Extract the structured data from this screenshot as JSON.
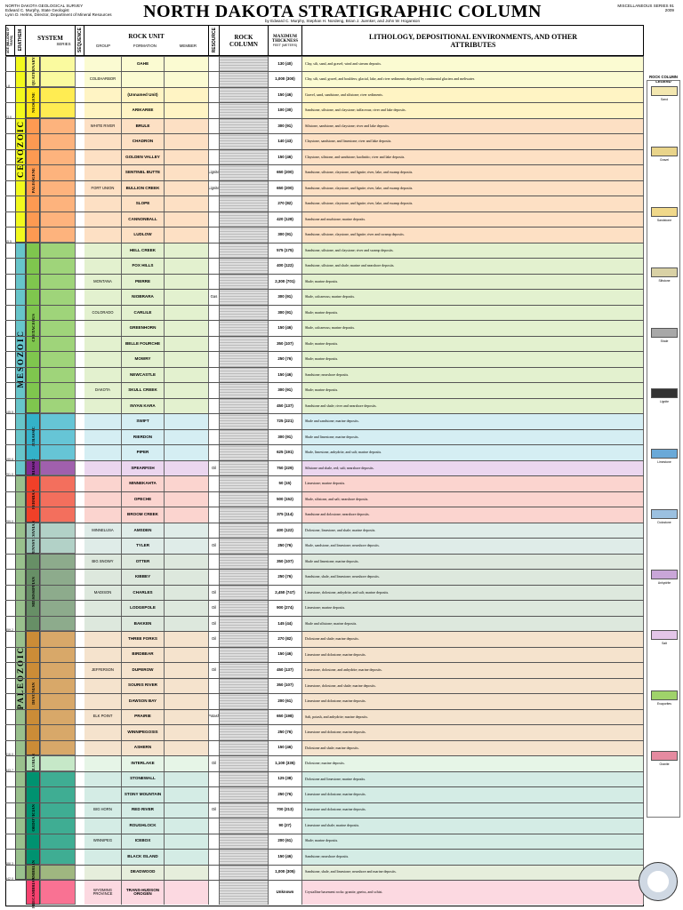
{
  "header": {
    "left_lines": [
      "NORTH DAKOTA GEOLOGICAL SURVEY",
      "Edward C. Murphy, State Geologist",
      "Lynn D. Helms, Director, Department of Mineral Resources"
    ],
    "title": "NORTH DAKOTA STRATIGRAPHIC COLUMN",
    "authors": "by Edward C. Murphy, Stephan H. Nordeng, Brian J. Juenker, and John W. Hoganson",
    "right_lines": [
      "MISCELLANEOUS SERIES 91",
      "2009"
    ]
  },
  "columns": {
    "age": "AGE (MILLIONS OF YEARS)",
    "erathem": "ERATHEM",
    "system": "SYSTEM",
    "series": "SERIES",
    "sequence": "SEQUENCE",
    "rock_unit": "ROCK UNIT",
    "group": "GROUP",
    "formation": "FORMATION",
    "member": "MEMBER",
    "resource": "RESOURCE",
    "rock_column": "ROCK COLUMN",
    "max_thickness": "MAXIMUM THICKNESS",
    "thickness_units": "FEET (METERS)",
    "lithology": "LITHOLOGY, DEPOSITIONAL ENVIRONMENTS, AND OTHER ATTRIBUTES"
  },
  "eras": [
    {
      "name": "CENOZOIC"
    },
    {
      "name": "MESOZOIC"
    },
    {
      "name": "PALEOZOIC"
    }
  ],
  "systems": [
    {
      "name": "QUATERNARY",
      "color": "#f9f97f"
    },
    {
      "name": "NEOGENE",
      "color": "#ffe619"
    },
    {
      "name": "PALEOGENE",
      "color": "#fd9a52"
    },
    {
      "name": "CRETACEOUS",
      "color": "#7fc64e"
    },
    {
      "name": "JURASSIC",
      "color": "#34b2c9"
    },
    {
      "name": "TRIASSIC",
      "color": "#812b92"
    },
    {
      "name": "PERMIAN",
      "color": "#f04028"
    },
    {
      "name": "PENNSYLVANIAN",
      "color": "#99c2b5"
    },
    {
      "name": "MISSISSIPPIAN",
      "color": "#678f66"
    },
    {
      "name": "DEVONIAN",
      "color": "#cb8c37"
    },
    {
      "name": "SILURIAN",
      "color": "#b3e1b6"
    },
    {
      "name": "ORDOVICIAN",
      "color": "#009270"
    },
    {
      "name": "CAMBRIAN",
      "color": "#7fa056"
    },
    {
      "name": "PRECAMBRIAN",
      "color": "#f74370"
    }
  ],
  "ages": [
    "1.8",
    "23.0",
    "65.5",
    "145.5",
    "199.6",
    "251.0",
    "299.0",
    "359.2",
    "416.0",
    "443.7",
    "488.3",
    "542.0"
  ],
  "units": [
    {
      "group": "",
      "formation": "OAHE",
      "resource": "",
      "thickness": "130 (40)",
      "desc": "Clay, silt, sand, and gravel; wind and stream deposits.",
      "color": "#fbfbd2"
    },
    {
      "group": "COLEHARBOR",
      "formation": "",
      "resource": "",
      "thickness": "1,000 (300)",
      "desc": "Clay, silt, sand, gravel, and boulders; glacial, lake, and river sediments deposited by continental glaciers and meltwater.",
      "color": "#fbfbd2"
    },
    {
      "group": "",
      "formation": "(Unnamed Unit)",
      "resource": "",
      "thickness": "150 (46)",
      "desc": "Gravel, sand, sandstone, and siltstone; river sediments.",
      "color": "#fff4c4"
    },
    {
      "group": "",
      "formation": "ARIKAREE",
      "resource": "",
      "thickness": "100 (30)",
      "desc": "Sandstone, siltstone, and claystone; tuffaceous; river and lake deposits.",
      "color": "#fff4c4"
    },
    {
      "group": "WHITE RIVER",
      "formation": "BRULE",
      "resource": "",
      "thickness": "300 (91)",
      "desc": "Siltstone, sandstone, and claystone; river and lake deposits.",
      "color": "#fde0c4"
    },
    {
      "group": "",
      "formation": "CHADRON",
      "resource": "",
      "thickness": "140 (43)",
      "desc": "Claystone, sandstone, and limestone; river and lake deposits.",
      "color": "#fde0c4"
    },
    {
      "group": "",
      "formation": "GOLDEN VALLEY",
      "resource": "",
      "thickness": "150 (46)",
      "desc": "Claystone, siltstone, and sandstone; kaolinitic; river and lake deposits.",
      "color": "#fde0c4"
    },
    {
      "group": "",
      "formation": "SENTINEL BUTTE",
      "resource": "Lignite",
      "thickness": "650 (200)",
      "desc": "Sandstone, siltstone, claystone, and lignite; river, lake, and swamp deposits.",
      "color": "#fde0c4"
    },
    {
      "group": "FORT UNION",
      "formation": "BULLION CREEK",
      "resource": "Lignite",
      "thickness": "650 (200)",
      "desc": "Sandstone, siltstone, claystone, and lignite; river, lake, and swamp deposits.",
      "color": "#fde0c4"
    },
    {
      "group": "",
      "formation": "SLOPE",
      "resource": "",
      "thickness": "270 (82)",
      "desc": "Sandstone, siltstone, claystone, and lignite; river, lake, and swamp deposits.",
      "color": "#fde0c4"
    },
    {
      "group": "",
      "formation": "CANNONBALL",
      "resource": "",
      "thickness": "420 (128)",
      "desc": "Sandstone and mudstone; marine deposits.",
      "color": "#fde0c4"
    },
    {
      "group": "",
      "formation": "LUDLOW",
      "resource": "",
      "thickness": "300 (91)",
      "desc": "Sandstone, siltstone, claystone, and lignite; river and swamp deposits.",
      "color": "#fde0c4"
    },
    {
      "group": "",
      "formation": "HELL CREEK",
      "resource": "",
      "thickness": "575 (175)",
      "desc": "Sandstone, siltstone, and claystone; river and swamp deposits.",
      "color": "#e3f1cf"
    },
    {
      "group": "",
      "formation": "FOX HILLS",
      "resource": "",
      "thickness": "400 (122)",
      "desc": "Sandstone, siltstone, and shale; marine and nearshore deposits.",
      "color": "#e3f1cf"
    },
    {
      "group": "MONTANA",
      "formation": "PIERRE",
      "resource": "",
      "thickness": "2,300 (701)",
      "desc": "Shale; marine deposits.",
      "color": "#e3f1cf"
    },
    {
      "group": "",
      "formation": "NIOBRARA",
      "resource": "Gas",
      "thickness": "300 (91)",
      "desc": "Shale, calcareous; marine deposits.",
      "color": "#e3f1cf"
    },
    {
      "group": "COLORADO",
      "formation": "CARLILE",
      "resource": "",
      "thickness": "300 (91)",
      "desc": "Shale; marine deposits.",
      "color": "#e3f1cf"
    },
    {
      "group": "",
      "formation": "GREENHORN",
      "resource": "",
      "thickness": "150 (46)",
      "desc": "Shale, calcareous; marine deposits.",
      "color": "#e3f1cf"
    },
    {
      "group": "",
      "formation": "BELLE FOURCHE",
      "resource": "",
      "thickness": "350 (107)",
      "desc": "Shale; marine deposits.",
      "color": "#e3f1cf"
    },
    {
      "group": "",
      "formation": "MOWRY",
      "resource": "",
      "thickness": "250 (76)",
      "desc": "Shale; marine deposits.",
      "color": "#e3f1cf"
    },
    {
      "group": "",
      "formation": "NEWCASTLE",
      "resource": "",
      "thickness": "150 (46)",
      "desc": "Sandstone; nearshore deposits.",
      "color": "#e3f1cf"
    },
    {
      "group": "DAKOTA",
      "formation": "SKULL CREEK",
      "resource": "",
      "thickness": "300 (91)",
      "desc": "Shale; marine deposits.",
      "color": "#e3f1cf"
    },
    {
      "group": "",
      "formation": "INYAN KARA",
      "resource": "",
      "thickness": "450 (137)",
      "desc": "Sandstone and shale; river and nearshore deposits.",
      "color": "#e3f1cf"
    },
    {
      "group": "",
      "formation": "SWIFT",
      "resource": "",
      "thickness": "725 (221)",
      "desc": "Shale and sandstone; marine deposits.",
      "color": "#d5eef3"
    },
    {
      "group": "",
      "formation": "RIERDON",
      "resource": "",
      "thickness": "300 (91)",
      "desc": "Shale and limestone; marine deposits.",
      "color": "#d5eef3"
    },
    {
      "group": "",
      "formation": "PIPER",
      "resource": "",
      "thickness": "625 (191)",
      "desc": "Shale, limestone, anhydrite, and salt; marine deposits.",
      "color": "#d5eef3"
    },
    {
      "group": "",
      "formation": "SPEARFISH",
      "resource": "Oil",
      "thickness": "750 (229)",
      "desc": "Siltstone and shale, red; salt; nearshore deposits.",
      "color": "#ebd6ef"
    },
    {
      "group": "",
      "formation": "MINNEKAHTA",
      "resource": "",
      "thickness": "50 (15)",
      "desc": "Limestone; marine deposits.",
      "color": "#fbd4cf"
    },
    {
      "group": "",
      "formation": "OPECHE",
      "resource": "",
      "thickness": "500 (152)",
      "desc": "Shale, siltstone, and salt; nearshore deposits.",
      "color": "#fbd4cf"
    },
    {
      "group": "",
      "formation": "BROOM CREEK",
      "resource": "",
      "thickness": "375 (114)",
      "desc": "Sandstone and dolostone; nearshore deposits.",
      "color": "#fbd4cf"
    },
    {
      "group": "MINNELUSA",
      "formation": "AMSDEN",
      "resource": "",
      "thickness": "400 (122)",
      "desc": "Dolostone, limestone, and shale; marine deposits.",
      "color": "#dfece8"
    },
    {
      "group": "",
      "formation": "TYLER",
      "resource": "Oil",
      "thickness": "250 (76)",
      "desc": "Shale, sandstone, and limestone; nearshore deposits.",
      "color": "#dfece8"
    },
    {
      "group": "BIG SNOWY",
      "formation": "OTTER",
      "resource": "",
      "thickness": "350 (107)",
      "desc": "Shale and limestone; marine deposits.",
      "color": "#dde8dd"
    },
    {
      "group": "",
      "formation": "KIBBEY",
      "resource": "",
      "thickness": "250 (76)",
      "desc": "Sandstone, shale, and limestone; nearshore deposits.",
      "color": "#dde8dd"
    },
    {
      "group": "MADISON",
      "formation": "CHARLES",
      "resource": "Oil",
      "thickness": "2,450 (747)",
      "desc": "Limestone, dolostone, anhydrite, and salt; marine deposits.",
      "color": "#dde8dd"
    },
    {
      "group": "",
      "formation": "LODGEPOLE",
      "resource": "Oil",
      "thickness": "900 (274)",
      "desc": "Limestone; marine deposits.",
      "color": "#dde8dd"
    },
    {
      "group": "",
      "formation": "BAKKEN",
      "resource": "Oil",
      "thickness": "145 (44)",
      "desc": "Shale and siltstone; marine deposits.",
      "color": "#dde8dd"
    },
    {
      "group": "",
      "formation": "THREE FORKS",
      "resource": "Oil",
      "thickness": "270 (82)",
      "desc": "Dolostone and shale; marine deposits.",
      "color": "#f5e3cd"
    },
    {
      "group": "",
      "formation": "BIRDBEAR",
      "resource": "",
      "thickness": "150 (46)",
      "desc": "Limestone and dolostone; marine deposits.",
      "color": "#f5e3cd"
    },
    {
      "group": "JEFFERSON",
      "formation": "DUPEROW",
      "resource": "Oil",
      "thickness": "450 (137)",
      "desc": "Limestone, dolostone, and anhydrite; marine deposits.",
      "color": "#f5e3cd"
    },
    {
      "group": "",
      "formation": "SOURIS RIVER",
      "resource": "",
      "thickness": "350 (107)",
      "desc": "Limestone, dolostone, and shale; marine deposits.",
      "color": "#f5e3cd"
    },
    {
      "group": "",
      "formation": "DAWSON BAY",
      "resource": "",
      "thickness": "200 (61)",
      "desc": "Limestone and dolostone; marine deposits.",
      "color": "#f5e3cd"
    },
    {
      "group": "ELK POINT",
      "formation": "PRAIRIE",
      "resource": "Potash",
      "thickness": "650 (198)",
      "desc": "Salt, potash, and anhydrite; marine deposits.",
      "color": "#f5e3cd"
    },
    {
      "group": "",
      "formation": "WINNIPEGOSIS",
      "resource": "",
      "thickness": "250 (76)",
      "desc": "Limestone and dolostone; marine deposits.",
      "color": "#f5e3cd"
    },
    {
      "group": "",
      "formation": "ASHERN",
      "resource": "",
      "thickness": "150 (46)",
      "desc": "Dolostone and shale; marine deposits.",
      "color": "#f5e3cd"
    },
    {
      "group": "",
      "formation": "INTERLAKE",
      "resource": "Oil",
      "thickness": "1,100 (335)",
      "desc": "Dolostone; marine deposits.",
      "color": "#e6f5e7"
    },
    {
      "group": "",
      "formation": "STONEWALL",
      "resource": "",
      "thickness": "125 (38)",
      "desc": "Dolostone and limestone; marine deposits.",
      "color": "#d4ece5"
    },
    {
      "group": "",
      "formation": "STONY MOUNTAIN",
      "resource": "",
      "thickness": "250 (76)",
      "desc": "Limestone and dolostone; marine deposits.",
      "color": "#d4ece5"
    },
    {
      "group": "BIG HORN",
      "formation": "RED RIVER",
      "resource": "Oil",
      "thickness": "700 (213)",
      "desc": "Limestone and dolostone; marine deposits.",
      "color": "#d4ece5"
    },
    {
      "group": "",
      "formation": "ROUGHLOCK",
      "resource": "",
      "thickness": "90 (27)",
      "desc": "Limestone and shale; marine deposits.",
      "color": "#d4ece5"
    },
    {
      "group": "WINNIPEG",
      "formation": "ICEBOX",
      "resource": "",
      "thickness": "200 (61)",
      "desc": "Shale; marine deposits.",
      "color": "#d4ece5"
    },
    {
      "group": "",
      "formation": "BLACK ISLAND",
      "resource": "",
      "thickness": "150 (46)",
      "desc": "Sandstone; nearshore deposits.",
      "color": "#d4ece5"
    },
    {
      "group": "",
      "formation": "DEADWOOD",
      "resource": "",
      "thickness": "1,000 (305)",
      "desc": "Sandstone, shale, and limestone; nearshore and marine deposits.",
      "color": "#e6eedc"
    },
    {
      "group": "WYOMING PROVINCE",
      "formation": "TRANS-HUDSON OROGEN",
      "resource": "",
      "thickness": "Unknown",
      "desc": "Crystalline basement rocks: granite, gneiss, and schist.",
      "color": "#fcd9e1"
    }
  ],
  "legend": {
    "title": "ROCK COLUMN LEGEND",
    "items": [
      {
        "label": "Sand",
        "color": "#f3e7b0"
      },
      {
        "label": "Gravel",
        "color": "#e9d48a"
      },
      {
        "label": "Sandstone",
        "color": "#f0d88a"
      },
      {
        "label": "Siltstone",
        "color": "#d9d1a5"
      },
      {
        "label": "Shale",
        "color": "#a8a8a8"
      },
      {
        "label": "Lignite",
        "color": "#333333"
      },
      {
        "label": "Limestone",
        "color": "#6aa9d8"
      },
      {
        "label": "Dolostone",
        "color": "#9bc0e0"
      },
      {
        "label": "Anhydrite",
        "color": "#c9a6d8"
      },
      {
        "label": "Salt",
        "color": "#e3c6e8"
      },
      {
        "label": "Evaporites",
        "color": "#9fd26a"
      },
      {
        "label": "Granite",
        "color": "#e58aa0"
      }
    ]
  }
}
